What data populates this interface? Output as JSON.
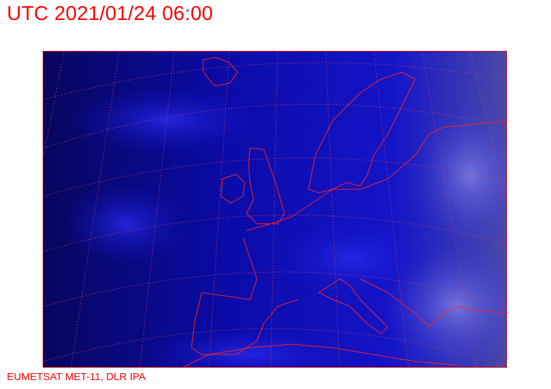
{
  "header": {
    "title": "UTC 2021/01/24 06:00"
  },
  "map": {
    "type": "satellite-image",
    "projection_grid": "dotted lat/lon graticule",
    "coastline_color": "#ff2020",
    "grid_color": "#d04060",
    "background_color": "#0a0a9a"
  },
  "footer": {
    "credit": "EUMETSAT MET-11, DLR IPA"
  }
}
